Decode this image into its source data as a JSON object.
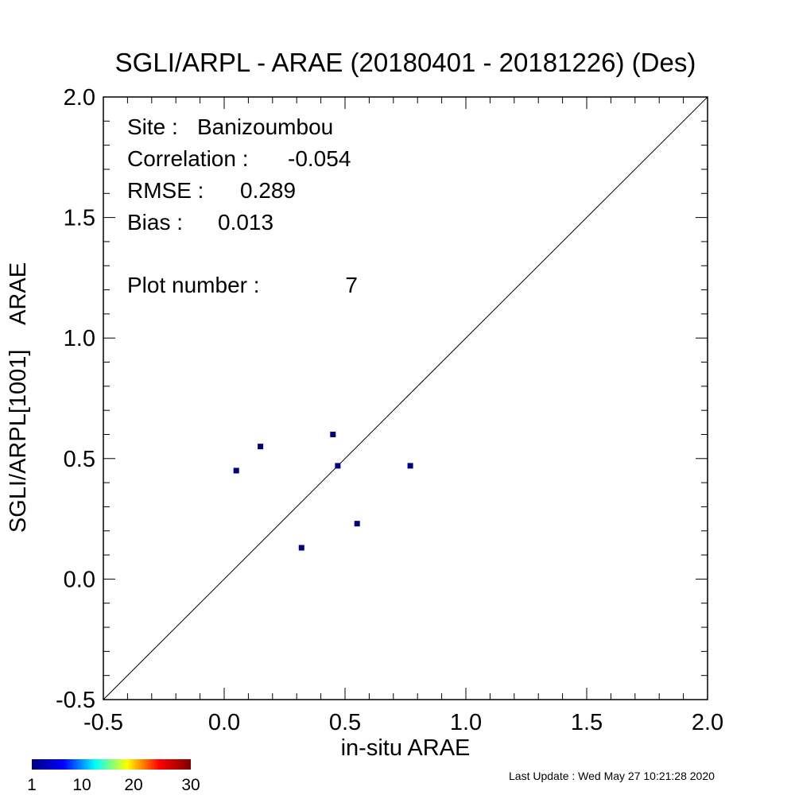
{
  "chart_data": {
    "type": "scatter",
    "title": "SGLI/ARPL - ARAE (20180401 - 20181226) (Des)",
    "xlabel": "in-situ ARAE",
    "ylabel": "SGLI/ARPL[1001]    ARAE",
    "xlim": [
      -0.5,
      2.0
    ],
    "ylim": [
      -0.5,
      2.0
    ],
    "x_ticks": [
      "-0.5",
      "0.0",
      "0.5",
      "1.0",
      "1.5",
      "2.0"
    ],
    "y_ticks": [
      "-0.5",
      "0.0",
      "0.5",
      "1.0",
      "1.5",
      "2.0"
    ],
    "reference_line": "1:1",
    "grid": false,
    "point_color": "#00007f",
    "points": [
      {
        "x": 0.05,
        "y": 0.45
      },
      {
        "x": 0.15,
        "y": 0.55
      },
      {
        "x": 0.32,
        "y": 0.13
      },
      {
        "x": 0.45,
        "y": 0.6
      },
      {
        "x": 0.47,
        "y": 0.47
      },
      {
        "x": 0.55,
        "y": 0.23
      },
      {
        "x": 0.77,
        "y": 0.47
      }
    ],
    "stats": [
      {
        "label": "Site :",
        "value": "Banizoumbou"
      },
      {
        "label": "Correlation :",
        "value": "-0.054"
      },
      {
        "label": "RMSE :",
        "value": "0.289"
      },
      {
        "label": "Bias :",
        "value": "0.013"
      }
    ],
    "plot_number": {
      "label": "Plot number :",
      "value": "7"
    },
    "colorbar": {
      "colors": [
        "#00007f",
        "#0000ff",
        "#00ffff",
        "#ffff00",
        "#ff0000",
        "#7f0000"
      ],
      "ticks": [
        "1",
        "10",
        "20",
        "30"
      ]
    }
  },
  "footer": {
    "last_update": "Last Update : Wed May 27 10:21:28 2020"
  }
}
